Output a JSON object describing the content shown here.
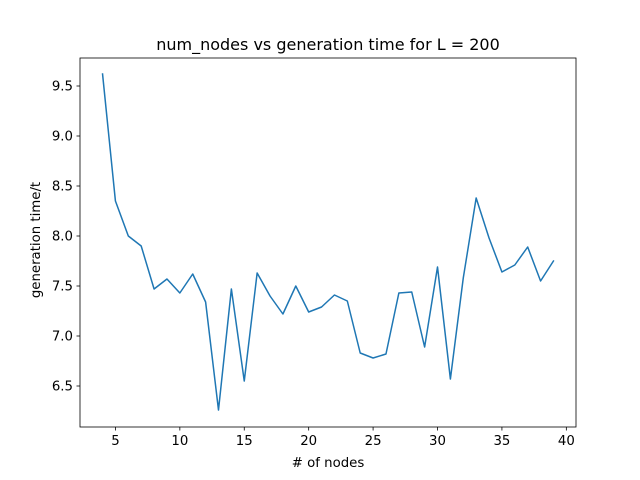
{
  "chart_data": {
    "type": "line",
    "title": "num_nodes vs generation time for L = 200",
    "xlabel": "# of nodes",
    "ylabel": "generation time/t",
    "xlim": [
      2.25,
      40.75
    ],
    "ylim": [
      6.09,
      9.78
    ],
    "x_ticks": [
      5,
      10,
      15,
      20,
      25,
      30,
      35,
      40
    ],
    "y_ticks": [
      6.5,
      7.0,
      7.5,
      8.0,
      8.5,
      9.0,
      9.5
    ],
    "x_tick_labels": [
      "5",
      "10",
      "15",
      "20",
      "25",
      "30",
      "35",
      "40"
    ],
    "y_tick_labels": [
      "6.5",
      "7.0",
      "7.5",
      "8.0",
      "8.5",
      "9.0",
      "9.5"
    ],
    "grid": false,
    "line_color": "#1f77b4",
    "series": [
      {
        "x": [
          4,
          5,
          6,
          7,
          8,
          9,
          10,
          11,
          12,
          13,
          14,
          15,
          16,
          17,
          18,
          19,
          20,
          21,
          22,
          23,
          24,
          25,
          26,
          27,
          28,
          29,
          30,
          31,
          32,
          33,
          34,
          35,
          36,
          37,
          38,
          39
        ],
        "values": [
          9.62,
          8.35,
          8.0,
          7.9,
          7.47,
          7.57,
          7.43,
          7.62,
          7.34,
          6.26,
          7.47,
          6.55,
          7.63,
          7.4,
          7.22,
          7.5,
          7.24,
          7.29,
          7.41,
          7.35,
          6.83,
          6.78,
          6.82,
          7.43,
          7.44,
          6.89,
          7.69,
          6.57,
          7.58,
          8.38,
          7.98,
          7.64,
          7.71,
          7.89,
          7.55,
          7.75
        ]
      }
    ]
  }
}
